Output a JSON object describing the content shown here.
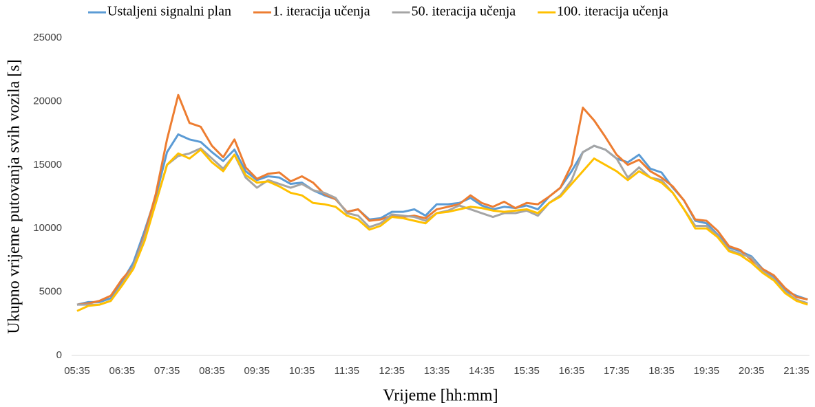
{
  "chart_data": {
    "type": "line",
    "x_label": "Vrijeme [hh:mm]",
    "y_label": "Ukupno vrijeme putovanja svih vozila [s]",
    "categories": [
      "05:35",
      null,
      null,
      null,
      "06:35",
      null,
      null,
      null,
      "07:35",
      null,
      null,
      null,
      "08:35",
      null,
      null,
      null,
      "09:35",
      null,
      null,
      null,
      "10:35",
      null,
      null,
      null,
      "11:35",
      null,
      null,
      null,
      "12:35",
      null,
      null,
      null,
      "13:35",
      null,
      null,
      null,
      "14:35",
      null,
      null,
      null,
      "15:35",
      null,
      null,
      null,
      "16:35",
      null,
      null,
      null,
      "17:35",
      null,
      null,
      null,
      "18:35",
      null,
      null,
      null,
      "19:35",
      null,
      null,
      null,
      "20:35",
      null,
      null,
      null,
      "21:35",
      null
    ],
    "ylim": [
      0,
      25000
    ],
    "yticks": [
      0,
      5000,
      10000,
      15000,
      20000,
      25000
    ],
    "legend": "top",
    "series": [
      {
        "name": "Ustaljeni signalni plan",
        "color": "#5b9bd5",
        "values": [
          4000,
          4200,
          4200,
          4500,
          5800,
          7300,
          9800,
          12500,
          16000,
          17400,
          17000,
          16800,
          16000,
          15300,
          16200,
          14500,
          13800,
          14100,
          14000,
          13500,
          13600,
          13000,
          12600,
          12300,
          11300,
          11500,
          10700,
          10800,
          11300,
          11300,
          11500,
          11000,
          11900,
          11900,
          12000,
          12400,
          11800,
          11500,
          11700,
          11600,
          11800,
          11500,
          12500,
          13200,
          14500,
          16000,
          16500,
          16200,
          15500,
          15200,
          15800,
          14700,
          14400,
          13200,
          12200,
          10600,
          10400,
          9500,
          8500,
          8200,
          7800,
          6800,
          6200,
          5100,
          4700,
          4400
        ]
      },
      {
        "name": "1. iteracija učenja",
        "color": "#ed7d31",
        "values": [
          4000,
          4100,
          4300,
          4700,
          6000,
          7000,
          9500,
          12700,
          17000,
          20500,
          18300,
          18000,
          16500,
          15600,
          17000,
          14800,
          13900,
          14300,
          14400,
          13700,
          14100,
          13600,
          12700,
          12300,
          11300,
          11500,
          10600,
          10700,
          11000,
          10900,
          11000,
          10800,
          11500,
          11700,
          11900,
          12600,
          12000,
          11700,
          12100,
          11600,
          12000,
          11900,
          12500,
          13200,
          15000,
          19500,
          18500,
          17200,
          15800,
          15000,
          15400,
          14500,
          14000,
          13300,
          12200,
          10700,
          10600,
          9800,
          8600,
          8300,
          7500,
          6800,
          6300,
          5300,
          4600,
          4400
        ]
      },
      {
        "name": "50. iteracija učenja",
        "color": "#a5a5a5",
        "values": [
          4000,
          4000,
          4000,
          4300,
          5600,
          7000,
          9300,
          12000,
          15000,
          15700,
          15900,
          16300,
          15500,
          14700,
          15800,
          14000,
          13200,
          13800,
          13500,
          13200,
          13500,
          13000,
          12800,
          12400,
          11200,
          11000,
          10100,
          10400,
          11100,
          11000,
          10900,
          10600,
          11200,
          11400,
          11800,
          11500,
          11200,
          10900,
          11200,
          11200,
          11400,
          11000,
          12000,
          12600,
          13800,
          16000,
          16500,
          16200,
          15500,
          14000,
          14800,
          14000,
          13800,
          12800,
          11500,
          10200,
          10200,
          9400,
          8300,
          8000,
          7700,
          6600,
          6000,
          5000,
          4400,
          4100
        ]
      },
      {
        "name": "100. iteracija učenja",
        "color": "#ffc000",
        "values": [
          3500,
          3900,
          4000,
          4300,
          5500,
          6800,
          9000,
          12000,
          15000,
          15900,
          15500,
          16200,
          15200,
          14500,
          15800,
          14200,
          13600,
          13700,
          13300,
          12800,
          12600,
          12000,
          11900,
          11700,
          11000,
          10700,
          9900,
          10200,
          10900,
          10800,
          10600,
          10400,
          11200,
          11300,
          11500,
          11700,
          11600,
          11400,
          11300,
          11400,
          11500,
          11200,
          12000,
          12500,
          13500,
          14500,
          15500,
          15000,
          14500,
          13800,
          14500,
          14000,
          13600,
          12800,
          11500,
          10000,
          10000,
          9300,
          8200,
          7900,
          7300,
          6500,
          5900,
          4900,
          4300,
          4000
        ]
      }
    ]
  }
}
